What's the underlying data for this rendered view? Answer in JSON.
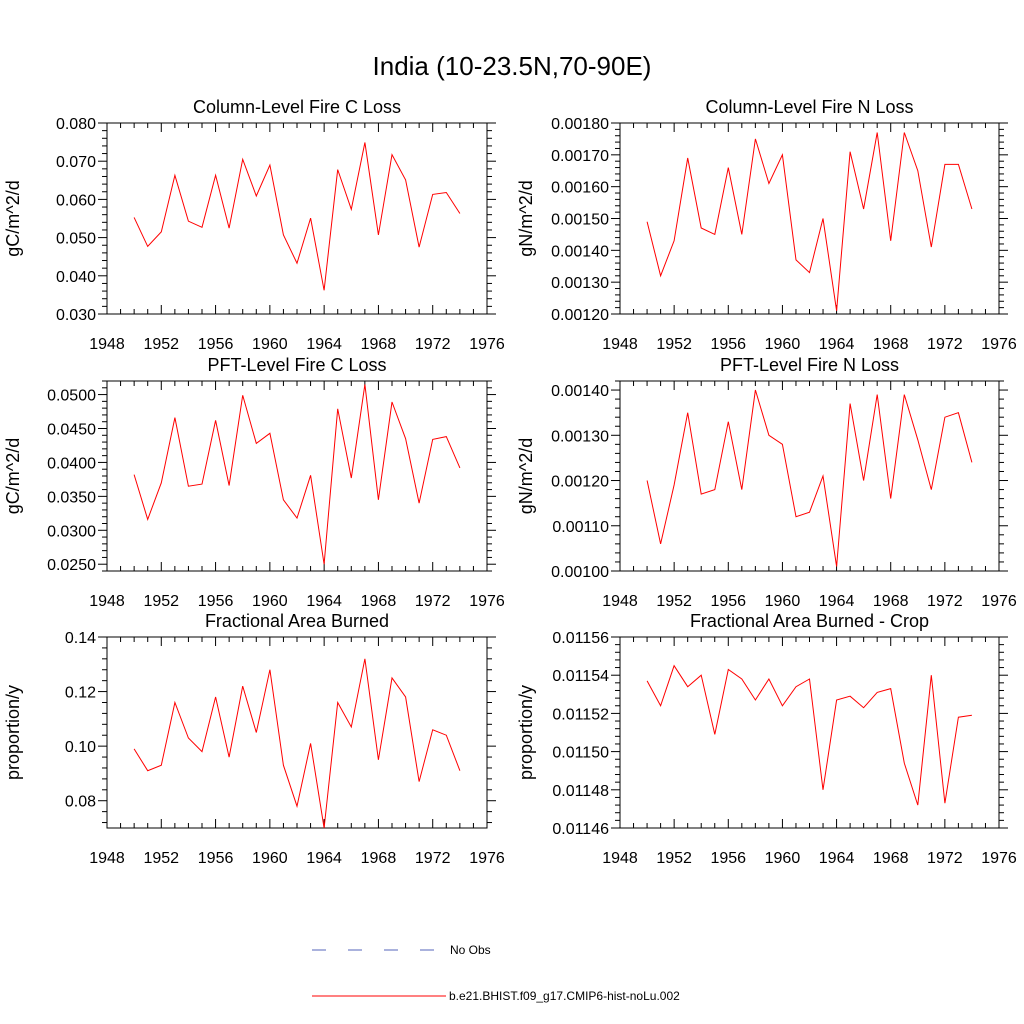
{
  "figure": {
    "title": "India (10-23.5N,70-90E)"
  },
  "colors": {
    "model_line": "#ff0000",
    "obs_line": "#5566bb"
  },
  "legend": {
    "entries": [
      {
        "label": "No Obs",
        "style": "dashed",
        "color": "#5566bb"
      },
      {
        "label": "b.e21.BHIST.f09_g17.CMIP6-hist-noLu.002",
        "style": "solid",
        "color": "#ff0000"
      }
    ]
  },
  "chart_data": [
    {
      "type": "line",
      "title": "Column-Level Fire C Loss",
      "ylabel": "gC/m^2/d",
      "xlim": [
        1948,
        1976
      ],
      "ylim": [
        0.03,
        0.08
      ],
      "xticks": [
        "1948",
        "1952",
        "1956",
        "1960",
        "1964",
        "1968",
        "1972",
        "1976"
      ],
      "xtick_values": [
        1948,
        1952,
        1956,
        1960,
        1964,
        1968,
        1972,
        1976
      ],
      "yticks": [
        "0.030",
        "0.040",
        "0.050",
        "0.060",
        "0.070",
        "0.080"
      ],
      "ytick_values": [
        0.03,
        0.04,
        0.05,
        0.06,
        0.07,
        0.08
      ],
      "x": [
        1950,
        1951,
        1952,
        1953,
        1954,
        1955,
        1956,
        1957,
        1958,
        1959,
        1960,
        1961,
        1962,
        1963,
        1964,
        1965,
        1966,
        1967,
        1968,
        1969,
        1970,
        1971,
        1972,
        1973,
        1974
      ],
      "values": [
        0.0553,
        0.0477,
        0.0515,
        0.0663,
        0.0543,
        0.0527,
        0.0663,
        0.0525,
        0.0705,
        0.0609,
        0.069,
        0.0507,
        0.0433,
        0.0551,
        0.0362,
        0.0678,
        0.0574,
        0.0749,
        0.0507,
        0.0717,
        0.0651,
        0.0475,
        0.0613,
        0.0618,
        0.0563
      ]
    },
    {
      "type": "line",
      "title": "Column-Level Fire N Loss",
      "ylabel": "gN/m^2/d",
      "xlim": [
        1948,
        1976
      ],
      "ylim": [
        0.0012,
        0.0018
      ],
      "xticks": [
        "1948",
        "1952",
        "1956",
        "1960",
        "1964",
        "1968",
        "1972",
        "1976"
      ],
      "xtick_values": [
        1948,
        1952,
        1956,
        1960,
        1964,
        1968,
        1972,
        1976
      ],
      "yticks": [
        "0.00120",
        "0.00130",
        "0.00140",
        "0.00150",
        "0.00160",
        "0.00170",
        "0.00180"
      ],
      "ytick_values": [
        0.0012,
        0.0013,
        0.0014,
        0.0015,
        0.0016,
        0.0017,
        0.0018
      ],
      "x": [
        1950,
        1951,
        1952,
        1953,
        1954,
        1955,
        1956,
        1957,
        1958,
        1959,
        1960,
        1961,
        1962,
        1963,
        1964,
        1965,
        1966,
        1967,
        1968,
        1969,
        1970,
        1971,
        1972,
        1973,
        1974
      ],
      "values": [
        0.00149,
        0.00132,
        0.00143,
        0.00169,
        0.00147,
        0.00145,
        0.00166,
        0.00145,
        0.00175,
        0.00161,
        0.0017,
        0.00137,
        0.00133,
        0.0015,
        0.00121,
        0.00171,
        0.00153,
        0.00177,
        0.00143,
        0.00177,
        0.00165,
        0.00141,
        0.00167,
        0.00167,
        0.00153
      ]
    },
    {
      "type": "line",
      "title": "PFT-Level Fire C Loss",
      "ylabel": "gC/m^2/d",
      "xlim": [
        1948,
        1976
      ],
      "ylim": [
        0.024,
        0.052
      ],
      "xticks": [
        "1948",
        "1952",
        "1956",
        "1960",
        "1964",
        "1968",
        "1972",
        "1976"
      ],
      "xtick_values": [
        1948,
        1952,
        1956,
        1960,
        1964,
        1968,
        1972,
        1976
      ],
      "yticks": [
        "0.0250",
        "0.0300",
        "0.0350",
        "0.0400",
        "0.0450",
        "0.0500"
      ],
      "ytick_values": [
        0.025,
        0.03,
        0.035,
        0.04,
        0.045,
        0.05
      ],
      "x": [
        1950,
        1951,
        1952,
        1953,
        1954,
        1955,
        1956,
        1957,
        1958,
        1959,
        1960,
        1961,
        1962,
        1963,
        1964,
        1965,
        1966,
        1967,
        1968,
        1969,
        1970,
        1971,
        1972,
        1973,
        1974
      ],
      "values": [
        0.0382,
        0.0316,
        0.037,
        0.0466,
        0.0365,
        0.0368,
        0.0462,
        0.0366,
        0.0499,
        0.0428,
        0.0443,
        0.0345,
        0.0318,
        0.0381,
        0.025,
        0.0479,
        0.0377,
        0.0515,
        0.0345,
        0.0489,
        0.0435,
        0.034,
        0.0434,
        0.0438,
        0.0392
      ]
    },
    {
      "type": "line",
      "title": "PFT-Level Fire N Loss",
      "ylabel": "gN/m^2/d",
      "xlim": [
        1948,
        1976
      ],
      "ylim": [
        0.001,
        0.00142
      ],
      "xticks": [
        "1948",
        "1952",
        "1956",
        "1960",
        "1964",
        "1968",
        "1972",
        "1976"
      ],
      "xtick_values": [
        1948,
        1952,
        1956,
        1960,
        1964,
        1968,
        1972,
        1976
      ],
      "yticks": [
        "0.00100",
        "0.00110",
        "0.00120",
        "0.00130",
        "0.00140"
      ],
      "ytick_values": [
        0.001,
        0.0011,
        0.0012,
        0.0013,
        0.0014
      ],
      "x": [
        1950,
        1951,
        1952,
        1953,
        1954,
        1955,
        1956,
        1957,
        1958,
        1959,
        1960,
        1961,
        1962,
        1963,
        1964,
        1965,
        1966,
        1967,
        1968,
        1969,
        1970,
        1971,
        1972,
        1973,
        1974
      ],
      "values": [
        0.0012,
        0.00106,
        0.00119,
        0.00135,
        0.00117,
        0.00118,
        0.00133,
        0.00118,
        0.0014,
        0.0013,
        0.00128,
        0.00112,
        0.00113,
        0.00121,
        0.00101,
        0.00137,
        0.0012,
        0.00139,
        0.00116,
        0.00139,
        0.00129,
        0.00118,
        0.00134,
        0.00135,
        0.00124
      ]
    },
    {
      "type": "line",
      "title": "Fractional Area Burned",
      "ylabel": "proportion/y",
      "xlim": [
        1948,
        1976
      ],
      "ylim": [
        0.07,
        0.14
      ],
      "xticks": [
        "1948",
        "1952",
        "1956",
        "1960",
        "1964",
        "1968",
        "1972",
        "1976"
      ],
      "xtick_values": [
        1948,
        1952,
        1956,
        1960,
        1964,
        1968,
        1972,
        1976
      ],
      "yticks": [
        "0.08",
        "0.10",
        "0.12",
        "0.14"
      ],
      "ytick_values": [
        0.08,
        0.1,
        0.12,
        0.14
      ],
      "x": [
        1950,
        1951,
        1952,
        1953,
        1954,
        1955,
        1956,
        1957,
        1958,
        1959,
        1960,
        1961,
        1962,
        1963,
        1964,
        1965,
        1966,
        1967,
        1968,
        1969,
        1970,
        1971,
        1972,
        1973,
        1974
      ],
      "values": [
        0.099,
        0.091,
        0.093,
        0.116,
        0.103,
        0.098,
        0.118,
        0.096,
        0.122,
        0.105,
        0.128,
        0.093,
        0.078,
        0.101,
        0.07,
        0.116,
        0.107,
        0.132,
        0.095,
        0.125,
        0.118,
        0.087,
        0.106,
        0.104,
        0.091
      ]
    },
    {
      "type": "line",
      "title": "Fractional Area Burned - Crop",
      "ylabel": "proportion/y",
      "xlim": [
        1948,
        1976
      ],
      "ylim": [
        0.01146,
        0.01156
      ],
      "xticks": [
        "1948",
        "1952",
        "1956",
        "1960",
        "1964",
        "1968",
        "1972",
        "1976"
      ],
      "xtick_values": [
        1948,
        1952,
        1956,
        1960,
        1964,
        1968,
        1972,
        1976
      ],
      "yticks": [
        "0.01146",
        "0.01148",
        "0.01150",
        "0.01152",
        "0.01154",
        "0.01156"
      ],
      "ytick_values": [
        0.01146,
        0.01148,
        0.0115,
        0.01152,
        0.01154,
        0.01156
      ],
      "x": [
        1950,
        1951,
        1952,
        1953,
        1954,
        1955,
        1956,
        1957,
        1958,
        1959,
        1960,
        1961,
        1962,
        1963,
        1964,
        1965,
        1966,
        1967,
        1968,
        1969,
        1970,
        1971,
        1972,
        1973,
        1974
      ],
      "values": [
        0.011537,
        0.011524,
        0.011545,
        0.011534,
        0.01154,
        0.011509,
        0.011543,
        0.011538,
        0.011527,
        0.011538,
        0.011524,
        0.011534,
        0.011538,
        0.01148,
        0.011527,
        0.011529,
        0.011523,
        0.011531,
        0.011533,
        0.011494,
        0.011472,
        0.01154,
        0.011473,
        0.011518,
        0.011519
      ]
    }
  ]
}
